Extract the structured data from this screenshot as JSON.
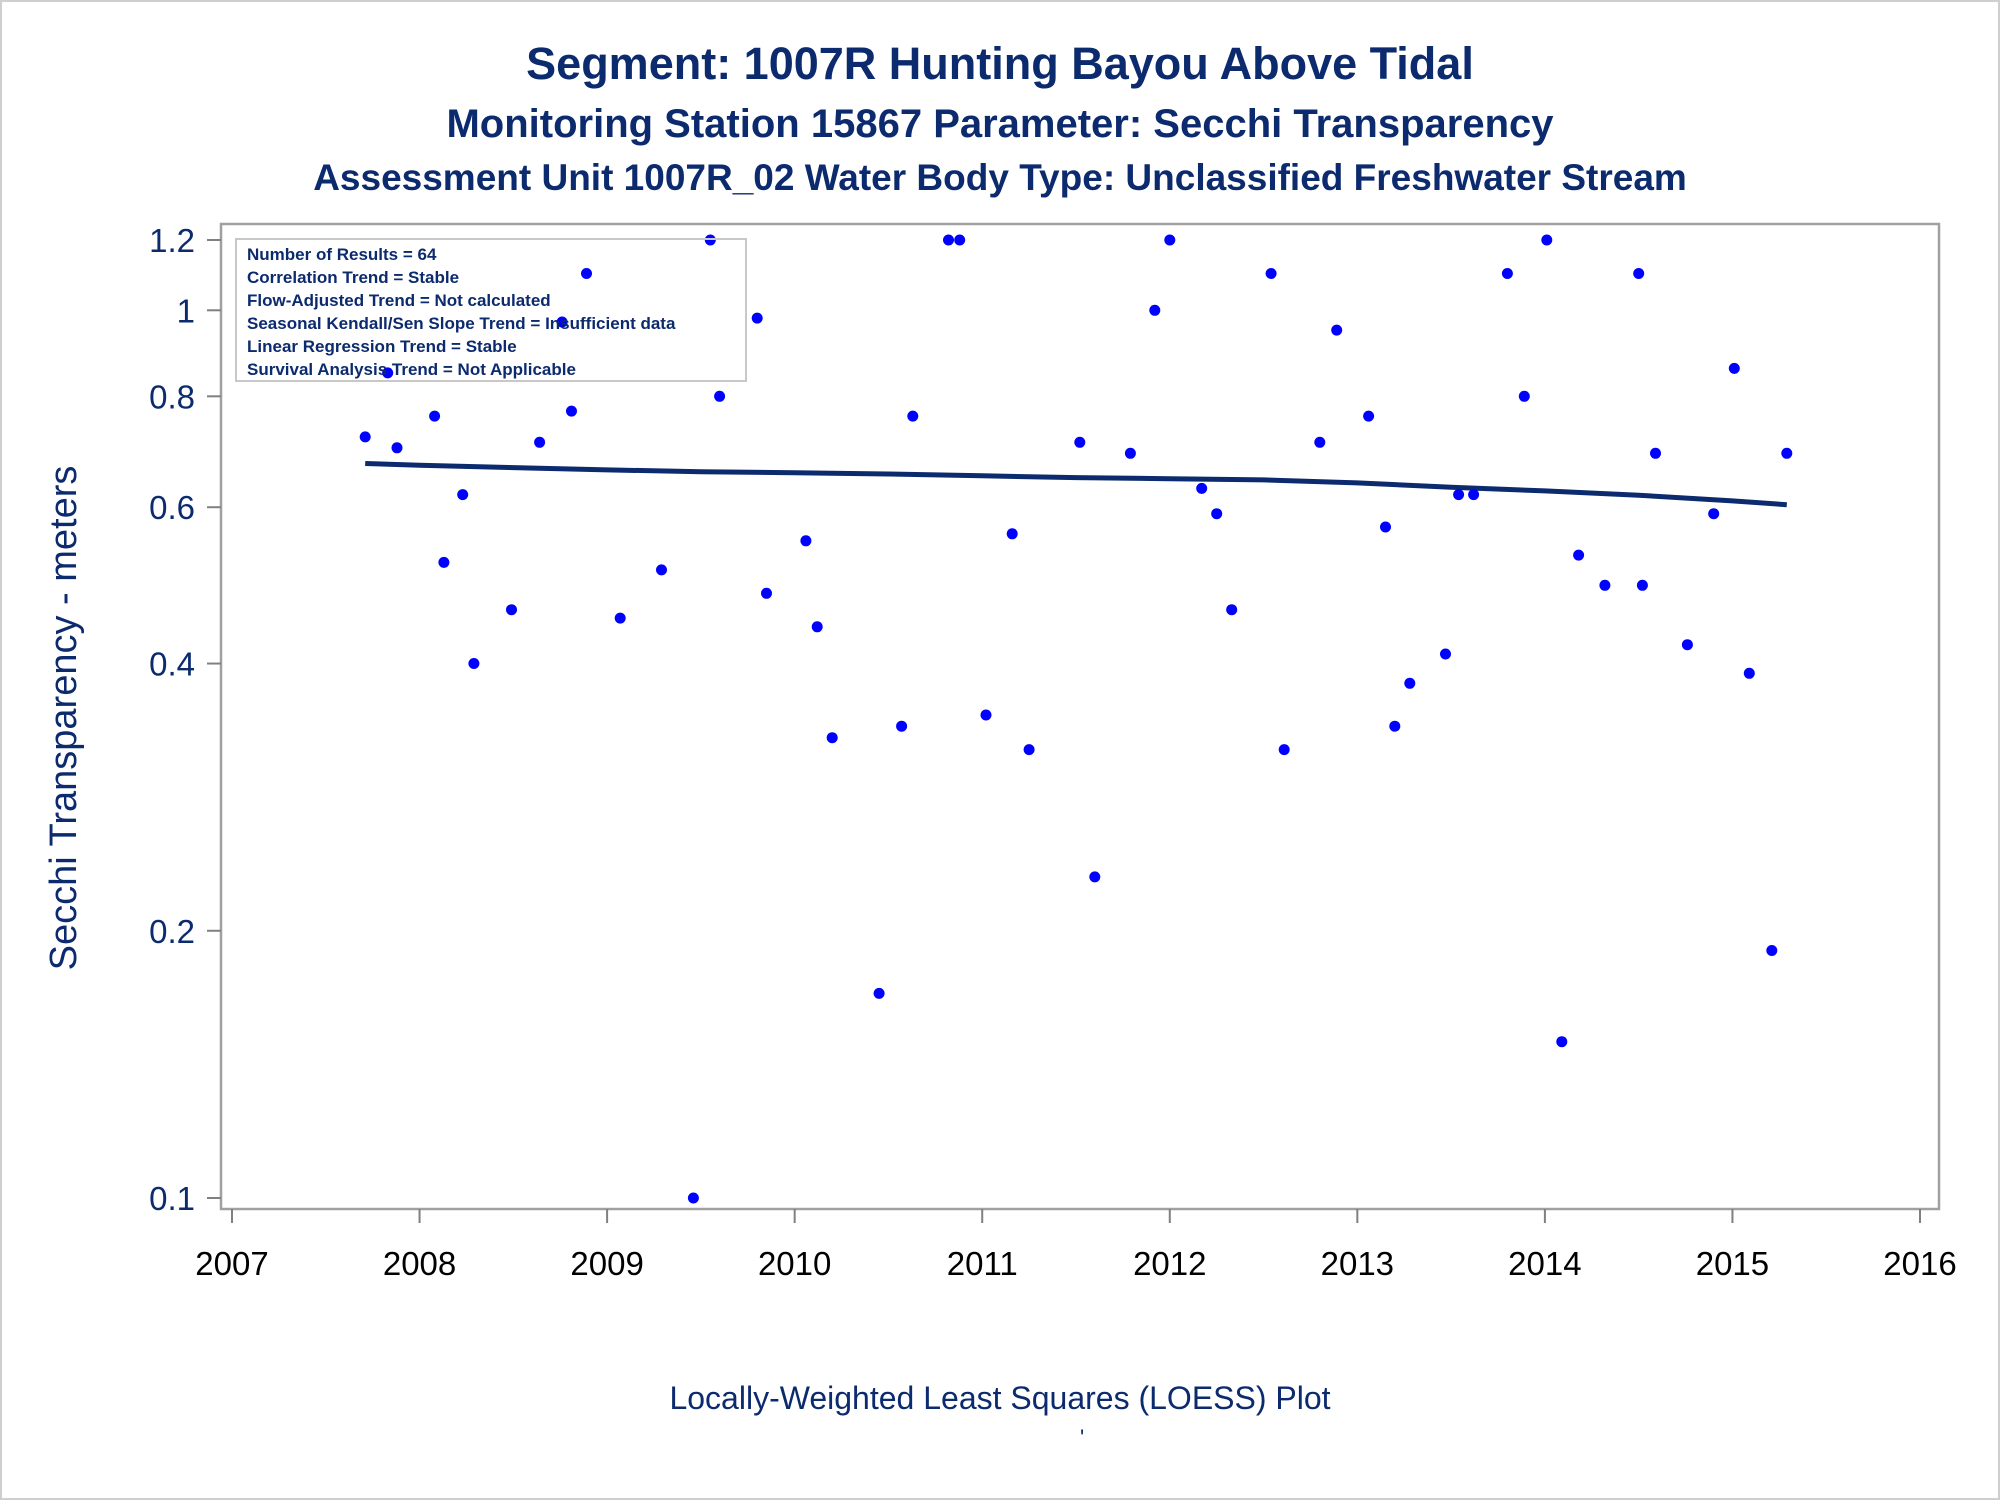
{
  "titles": {
    "line1": "Segment: 1007R  Hunting Bayou Above Tidal",
    "line2": "Monitoring Station 15867 Parameter: Secchi Transparency",
    "line3": "Assessment Unit 1007R_02   Water Body Type: Unclassified Freshwater Stream"
  },
  "footnote": "Locally-Weighted Least Squares (LOESS) Plot",
  "footnote2": "'",
  "stats_box": [
    "Number of Results = 64",
    "Correlation Trend = Stable",
    "Flow-Adjusted Trend = Not calculated",
    "Seasonal Kendall/Sen Slope Trend = Insufficient data",
    "Linear Regression Trend = Stable",
    "Survival Analysis Trend = Not Applicable"
  ],
  "colors": {
    "points": "#0000ff",
    "trend_line": "#0c2a6e",
    "text": "#0c2a6e",
    "frame": "#a0a0a0"
  },
  "chart_data": {
    "type": "scatter",
    "title": "Segment: 1007R  Hunting Bayou Above Tidal",
    "xlabel": "",
    "ylabel": "Secchi Transparency - meters",
    "xlim": [
      2007,
      2016
    ],
    "ylim": [
      0.1,
      1.2
    ],
    "y_scale": "log",
    "grid": false,
    "x_ticks": [
      "2007",
      "2008",
      "2009",
      "2010",
      "2011",
      "2012",
      "2013",
      "2014",
      "2015",
      "2016"
    ],
    "y_ticks": [
      {
        "value": 0.1,
        "label": "0.1"
      },
      {
        "value": 0.2,
        "label": "0.2"
      },
      {
        "value": 0.4,
        "label": "0.4"
      },
      {
        "value": 0.6,
        "label": "0.6"
      },
      {
        "value": 0.8,
        "label": "0.8"
      },
      {
        "value": 1.0,
        "label": "1"
      },
      {
        "value": 1.2,
        "label": "1.2"
      }
    ],
    "series": [
      {
        "type": "scatter",
        "points": [
          [
            2007.71,
            0.72
          ],
          [
            2007.83,
            0.85
          ],
          [
            2007.88,
            0.7
          ],
          [
            2008.08,
            0.76
          ],
          [
            2008.13,
            0.52
          ],
          [
            2008.23,
            0.62
          ],
          [
            2008.29,
            0.4
          ],
          [
            2008.49,
            0.46
          ],
          [
            2008.64,
            0.71
          ],
          [
            2008.76,
            0.97
          ],
          [
            2008.81,
            0.77
          ],
          [
            2008.89,
            1.1
          ],
          [
            2009.07,
            0.45
          ],
          [
            2009.29,
            0.51
          ],
          [
            2009.46,
            0.1
          ],
          [
            2009.55,
            1.2
          ],
          [
            2009.6,
            0.8
          ],
          [
            2009.8,
            0.98
          ],
          [
            2009.85,
            0.48
          ],
          [
            2010.06,
            0.55
          ],
          [
            2010.12,
            0.44
          ],
          [
            2010.2,
            0.33
          ],
          [
            2010.45,
            0.17
          ],
          [
            2010.57,
            0.34
          ],
          [
            2010.63,
            0.76
          ],
          [
            2010.82,
            1.2
          ],
          [
            2010.88,
            1.2
          ],
          [
            2011.02,
            0.35
          ],
          [
            2011.16,
            0.56
          ],
          [
            2011.25,
            0.32
          ],
          [
            2011.52,
            0.71
          ],
          [
            2011.6,
            0.23
          ],
          [
            2011.79,
            0.69
          ],
          [
            2011.92,
            1.0
          ],
          [
            2012.0,
            1.2
          ],
          [
            2012.17,
            0.63
          ],
          [
            2012.25,
            0.59
          ],
          [
            2012.33,
            0.46
          ],
          [
            2012.54,
            1.1
          ],
          [
            2012.61,
            0.32
          ],
          [
            2012.8,
            0.71
          ],
          [
            2012.89,
            0.95
          ],
          [
            2013.06,
            0.76
          ],
          [
            2013.15,
            0.57
          ],
          [
            2013.2,
            0.34
          ],
          [
            2013.28,
            0.38
          ],
          [
            2013.47,
            0.41
          ],
          [
            2013.54,
            0.62
          ],
          [
            2013.62,
            0.62
          ],
          [
            2013.8,
            1.1
          ],
          [
            2013.89,
            0.8
          ],
          [
            2014.01,
            1.2
          ],
          [
            2014.09,
            0.15
          ],
          [
            2014.18,
            0.53
          ],
          [
            2014.32,
            0.49
          ],
          [
            2014.5,
            1.1
          ],
          [
            2014.52,
            0.49
          ],
          [
            2014.59,
            0.69
          ],
          [
            2014.76,
            0.42
          ],
          [
            2014.9,
            0.59
          ],
          [
            2015.01,
            0.86
          ],
          [
            2015.09,
            0.39
          ],
          [
            2015.21,
            0.19
          ],
          [
            2015.29,
            0.69
          ]
        ]
      },
      {
        "type": "line",
        "points": [
          [
            2007.71,
            0.672
          ],
          [
            2008.0,
            0.669
          ],
          [
            2008.5,
            0.665
          ],
          [
            2009.0,
            0.661
          ],
          [
            2009.5,
            0.658
          ],
          [
            2010.0,
            0.656
          ],
          [
            2010.5,
            0.654
          ],
          [
            2011.0,
            0.651
          ],
          [
            2011.5,
            0.648
          ],
          [
            2012.0,
            0.646
          ],
          [
            2012.5,
            0.644
          ],
          [
            2013.0,
            0.639
          ],
          [
            2013.5,
            0.632
          ],
          [
            2014.0,
            0.626
          ],
          [
            2014.5,
            0.619
          ],
          [
            2015.0,
            0.61
          ],
          [
            2015.29,
            0.604
          ]
        ]
      }
    ]
  }
}
